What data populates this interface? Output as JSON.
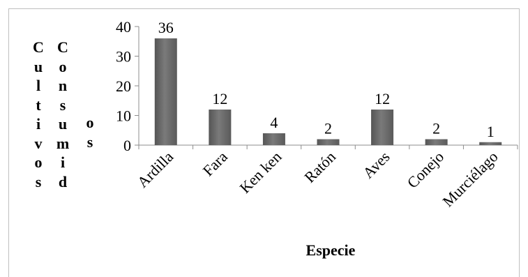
{
  "chart_data": {
    "type": "bar",
    "categories": [
      "Ardilla",
      "Fara",
      "Ken ken",
      "Ratón",
      "Aves",
      "Conejo",
      "Murciélago"
    ],
    "values": [
      36,
      12,
      4,
      2,
      12,
      2,
      1
    ],
    "data_labels": [
      "36",
      "12",
      "4",
      "2",
      "12",
      "2",
      "1"
    ],
    "ylim": [
      0,
      40
    ],
    "yticks": [
      0,
      10,
      20,
      30,
      40
    ],
    "xlabel": "Especie",
    "ylabel_parts": [
      "Cultivos",
      "Consumidos"
    ],
    "ylabel_columns": [
      [
        "C",
        "u",
        "l",
        "t",
        "i",
        "v",
        "o",
        "s"
      ],
      [
        "C",
        "o",
        "n",
        "s",
        "u",
        "m",
        "i",
        "d"
      ],
      [
        "o",
        "s"
      ]
    ],
    "bar_color": "#6e6e6e",
    "grid": false,
    "legend": "none"
  }
}
